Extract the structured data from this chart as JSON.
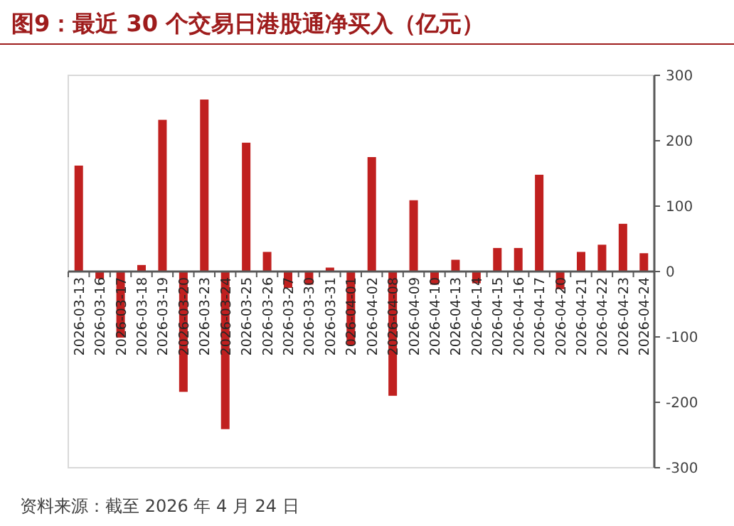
{
  "chart_data": {
    "type": "bar",
    "title": "图9：最近 30 个交易日港股通净买入（亿元）",
    "categories": [
      "2026-03-13",
      "2026-03-16",
      "2026-03-17",
      "2026-03-18",
      "2026-03-19",
      "2026-03-20",
      "2026-03-23",
      "2026-03-24",
      "2026-03-25",
      "2026-03-26",
      "2026-03-27",
      "2026-03-30",
      "2026-03-31",
      "2026-04-01",
      "2026-04-02",
      "2026-04-08",
      "2026-04-09",
      "2026-04-10",
      "2026-04-13",
      "2026-04-14",
      "2026-04-15",
      "2026-04-16",
      "2026-04-17",
      "2026-04-20",
      "2026-04-21",
      "2026-04-22",
      "2026-04-23",
      "2026-04-24"
    ],
    "values": [
      162,
      -11,
      -101,
      10,
      232,
      -184,
      263,
      -241,
      197,
      30,
      -25,
      -20,
      6,
      -112,
      175,
      -190,
      109,
      -20,
      18,
      -18,
      36,
      36,
      148,
      -27,
      30,
      41,
      73,
      28
    ],
    "color": "#c0201f",
    "ylim": [
      -300,
      300
    ],
    "yticks": [
      -300,
      -200,
      -100,
      0,
      100,
      200,
      300
    ],
    "grid": false,
    "annotations": [
      "资料来源：截至 2026 年 4 月 24 日"
    ]
  }
}
